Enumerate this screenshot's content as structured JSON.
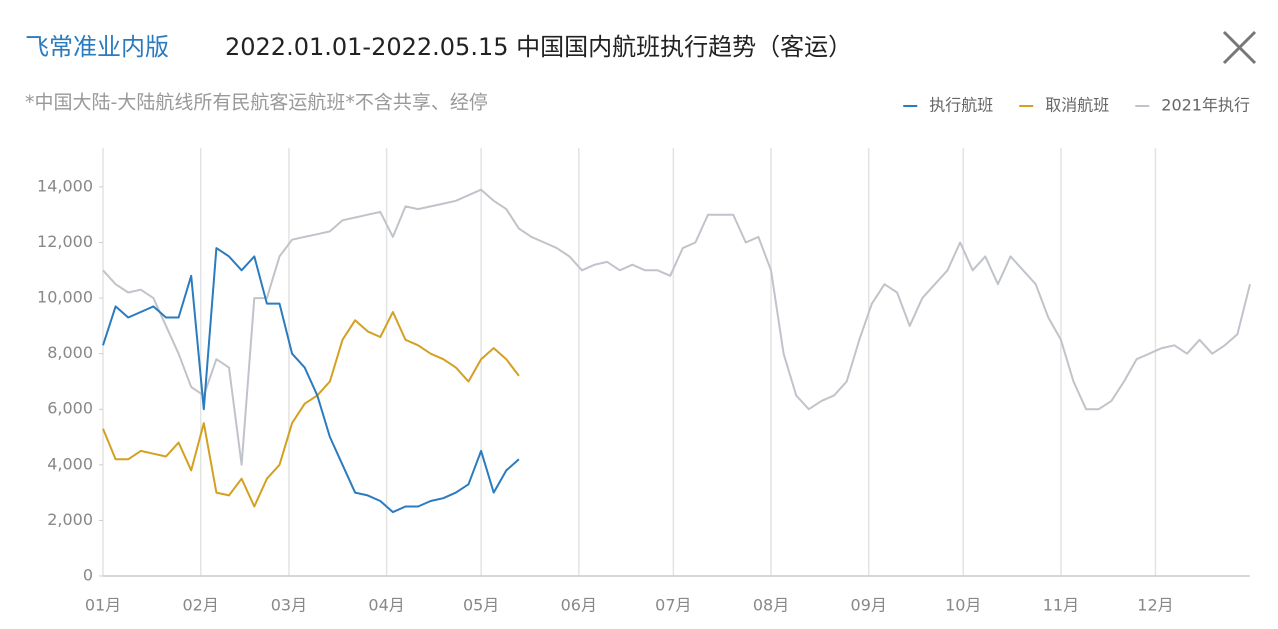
{
  "header": {
    "brand": "飞常准业内版"
  },
  "chart_data": {
    "type": "line",
    "title": "2022.01.01-2022.05.15 中国国内航班执行趋势（客运）",
    "subtitle": "*中国大陆-大陆航线所有民航客运航班*不含共享、经停",
    "legend": "top-right",
    "grid": "x",
    "x": [
      0,
      4,
      8,
      12,
      16,
      20,
      24,
      28,
      32,
      36,
      40,
      44,
      48,
      52,
      56,
      60,
      64,
      68,
      72,
      76,
      80,
      84,
      88,
      92,
      96,
      100,
      104,
      108,
      112,
      116,
      120,
      124,
      128,
      132,
      136,
      140,
      144,
      148,
      152,
      156,
      160,
      164,
      168,
      172,
      176,
      180,
      184,
      188,
      192,
      196,
      200,
      204,
      208,
      212,
      216,
      220,
      224,
      228,
      232,
      236,
      240,
      244,
      248,
      252,
      256,
      260,
      264,
      268,
      272,
      276,
      280,
      284,
      288,
      292,
      296,
      300,
      304,
      308,
      312,
      316,
      320,
      324,
      328,
      332,
      336,
      340,
      344,
      348,
      352,
      356,
      360,
      364
    ],
    "xlim": [
      0,
      364
    ],
    "xticks": [
      {
        "value": 0,
        "label": "01月"
      },
      {
        "value": 31,
        "label": "02月"
      },
      {
        "value": 59,
        "label": "03月"
      },
      {
        "value": 90,
        "label": "04月"
      },
      {
        "value": 120,
        "label": "05月"
      },
      {
        "value": 151,
        "label": "06月"
      },
      {
        "value": 181,
        "label": "07月"
      },
      {
        "value": 212,
        "label": "08月"
      },
      {
        "value": 243,
        "label": "09月"
      },
      {
        "value": 273,
        "label": "10月"
      },
      {
        "value": 304,
        "label": "11月"
      },
      {
        "value": 334,
        "label": "12月"
      }
    ],
    "ylim": [
      0,
      15400
    ],
    "yticks": [
      0,
      {
        "value": 2000,
        "label": "2,000"
      },
      {
        "value": 4000,
        "label": "4,000"
      },
      {
        "value": 6000,
        "label": "6,000"
      },
      {
        "value": 8000,
        "label": "8,000"
      },
      {
        "value": 10000,
        "label": "10,000"
      },
      {
        "value": 12000,
        "label": "12,000"
      },
      {
        "value": 14000,
        "label": "14,000"
      }
    ],
    "series": [
      {
        "name": "执行航班",
        "color": "#2b7bbf",
        "values": [
          8300,
          9700,
          9300,
          9500,
          9700,
          9300,
          9300,
          10800,
          6000,
          11800,
          11500,
          11000,
          11500,
          9800,
          9800,
          8000,
          7500,
          6500,
          5000,
          4000,
          3000,
          2900,
          2700,
          2300,
          2500,
          2500,
          2700,
          2800,
          3000,
          3300,
          4500,
          3000,
          3800,
          4200,
          null,
          null,
          null,
          null,
          null,
          null,
          null,
          null,
          null,
          null,
          null,
          null,
          null,
          null,
          null,
          null,
          null,
          null,
          null,
          null,
          null,
          null,
          null,
          null,
          null,
          null,
          null,
          null,
          null,
          null,
          null,
          null,
          null,
          null,
          null,
          null,
          null,
          null,
          null,
          null,
          null,
          null,
          null,
          null,
          null,
          null,
          null,
          null,
          null,
          null,
          null,
          null,
          null,
          null,
          null,
          null,
          null,
          null
        ]
      },
      {
        "name": "取消航班",
        "color": "#d4a020",
        "values": [
          5300,
          4200,
          4200,
          4500,
          4400,
          4300,
          4800,
          3800,
          5500,
          3000,
          2900,
          3500,
          2500,
          3500,
          4000,
          5500,
          6200,
          6500,
          7000,
          8500,
          9200,
          8800,
          8600,
          9500,
          8500,
          8300,
          8000,
          7800,
          7500,
          7000,
          7800,
          8200,
          7800,
          7200,
          null,
          null,
          null,
          null,
          null,
          null,
          null,
          null,
          null,
          null,
          null,
          null,
          null,
          null,
          null,
          null,
          null,
          null,
          null,
          null,
          null,
          null,
          null,
          null,
          null,
          null,
          null,
          null,
          null,
          null,
          null,
          null,
          null,
          null,
          null,
          null,
          null,
          null,
          null,
          null,
          null,
          null,
          null,
          null,
          null,
          null,
          null,
          null,
          null,
          null,
          null,
          null,
          null,
          null,
          null,
          null,
          null,
          null
        ]
      },
      {
        "name": "2021年执行",
        "color": "#c0c4ca",
        "values": [
          11000,
          10500,
          10200,
          10300,
          10000,
          9000,
          8000,
          6800,
          6500,
          7800,
          7500,
          4000,
          10000,
          10000,
          11500,
          12100,
          12200,
          12300,
          12400,
          12800,
          12900,
          13000,
          13100,
          12200,
          13300,
          13200,
          13300,
          13400,
          13500,
          13700,
          13900,
          13500,
          13200,
          12500,
          12200,
          12000,
          11800,
          11500,
          11000,
          11200,
          11300,
          11000,
          11200,
          11000,
          11000,
          10800,
          11800,
          12000,
          13000,
          13000,
          13000,
          12000,
          12200,
          11000,
          8000,
          6500,
          6000,
          6300,
          6500,
          7000,
          8500,
          9800,
          10500,
          10200,
          9000,
          10000,
          10500,
          11000,
          12000,
          11000,
          11500,
          10500,
          11500,
          11000,
          10500,
          9300,
          8500,
          7000,
          6000,
          6000,
          6300,
          7000,
          7800,
          8000,
          8200,
          8300,
          8000,
          8500,
          8000,
          8300,
          8700,
          10500
        ]
      }
    ]
  }
}
